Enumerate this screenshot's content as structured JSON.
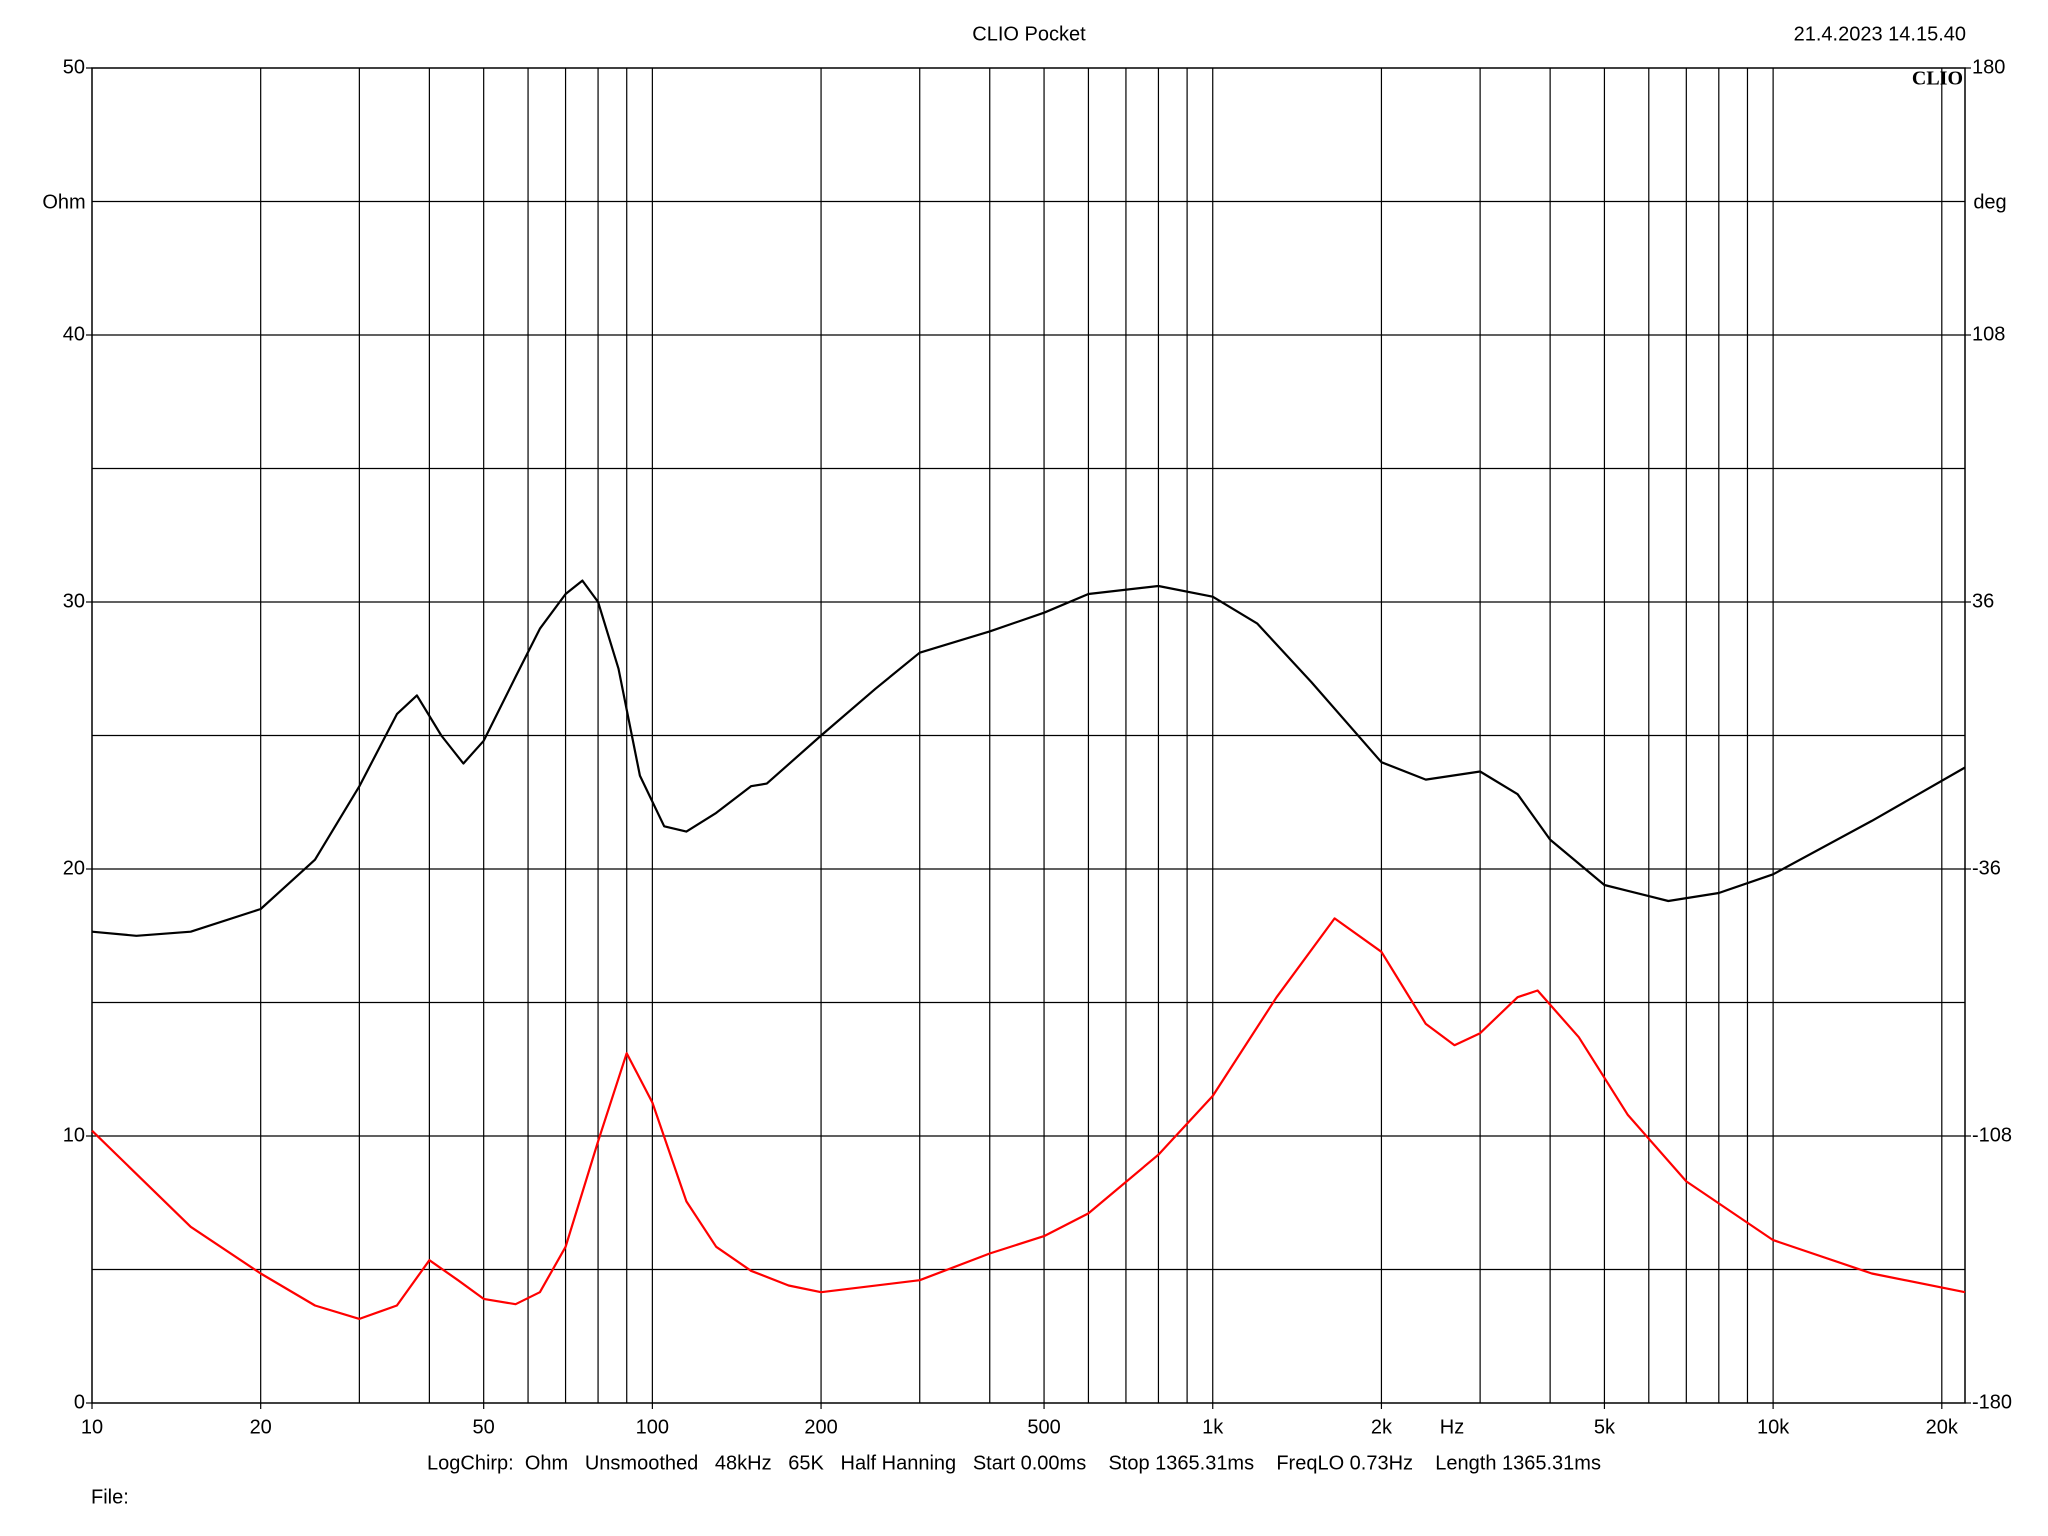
{
  "chart_data": {
    "type": "line",
    "title": "CLIO Pocket",
    "timestamp": "21.4.2023 14.15.40",
    "logo": "CLIO",
    "ylabel": "Ohm",
    "y2label": "deg",
    "xlabel": "Hz",
    "footer": "LogChirp:  Ohm   Unsmoothed   48kHz   65K   Half Hanning   Start 0.00ms    Stop 1365.31ms    FreqLO 0.73Hz    Length 1365.31ms",
    "file_label": "File:",
    "xscale": "log",
    "xlim": [
      10,
      22000
    ],
    "xticks": [
      10,
      20,
      50,
      100,
      200,
      500,
      {
        "value": 1000,
        "label": "1k"
      },
      {
        "value": 2000,
        "label": "2k"
      },
      {
        "value": 5000,
        "label": "5k"
      },
      {
        "value": 10000,
        "label": "10k"
      },
      {
        "value": 20000,
        "label": "20k"
      }
    ],
    "xgrid": [
      20,
      30,
      40,
      50,
      60,
      70,
      80,
      90,
      100,
      200,
      300,
      400,
      500,
      600,
      700,
      800,
      900,
      1000,
      2000,
      3000,
      4000,
      5000,
      6000,
      7000,
      8000,
      9000,
      10000,
      20000
    ],
    "ylim": [
      0,
      50
    ],
    "yticks": [
      0,
      10,
      20,
      30,
      40,
      50
    ],
    "ygrid": [
      5,
      10,
      15,
      20,
      25,
      30,
      35,
      40,
      45
    ],
    "y2lim": [
      -180,
      180
    ],
    "y2ticks": [
      -180,
      -108,
      -36,
      36,
      108,
      180
    ],
    "series": [
      {
        "color": "#000000",
        "x": [
          10,
          12,
          15,
          20,
          25,
          30,
          35,
          38,
          42,
          46,
          50,
          57,
          63,
          70,
          75,
          80,
          87,
          95,
          105,
          115,
          130,
          150,
          160,
          200,
          250,
          300,
          400,
          500,
          600,
          800,
          1000,
          1200,
          1500,
          2000,
          2400,
          3000,
          3500,
          4000,
          5000,
          6500,
          8000,
          10000,
          15000,
          22000
        ],
        "values": [
          17.65,
          17.5,
          17.65,
          18.5,
          20.35,
          23.1,
          25.8,
          26.5,
          25,
          23.95,
          24.8,
          27.2,
          29,
          30.3,
          30.8,
          30,
          27.5,
          23.5,
          21.6,
          21.4,
          22.1,
          23.1,
          23.2,
          25,
          26.75,
          28.1,
          28.9,
          29.6,
          30.3,
          30.6,
          30.2,
          29.2,
          27,
          24,
          23.35,
          23.65,
          22.8,
          21.1,
          19.4,
          18.8,
          19.1,
          19.8,
          21.8,
          23.8
        ]
      },
      {
        "color": "#ff0000",
        "x": [
          10,
          15,
          20,
          25,
          30,
          35,
          40,
          45,
          50,
          57,
          63,
          70,
          80,
          90,
          100,
          115,
          130,
          150,
          175,
          200,
          300,
          400,
          500,
          600,
          800,
          1000,
          1300,
          1650,
          2000,
          2400,
          2700,
          3000,
          3500,
          3800,
          4500,
          5500,
          7000,
          10000,
          15000,
          22000
        ],
        "values": [
          10.2,
          6.6,
          4.85,
          3.65,
          3.15,
          3.65,
          5.35,
          4.6,
          3.9,
          3.7,
          4.15,
          5.85,
          9.8,
          13.1,
          11.25,
          7.55,
          5.85,
          4.95,
          4.4,
          4.15,
          4.6,
          5.6,
          6.25,
          7.1,
          9.3,
          11.5,
          15.2,
          18.15,
          16.9,
          14.2,
          13.4,
          13.85,
          15.2,
          15.45,
          13.7,
          10.8,
          8.3,
          6.1,
          4.85,
          4.15
        ]
      }
    ]
  }
}
